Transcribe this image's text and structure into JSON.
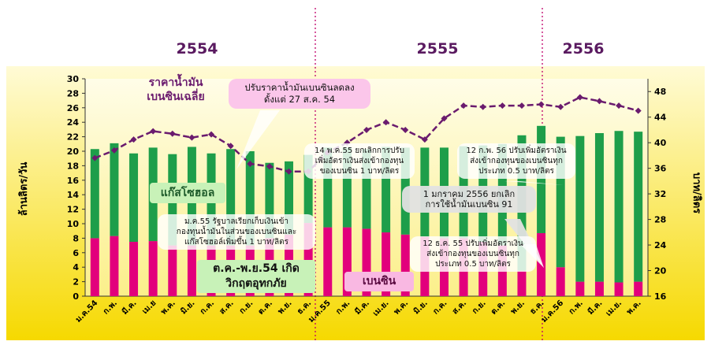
{
  "chart_data": {
    "type": "bar",
    "stacked": true,
    "year_labels": [
      "2554",
      "2555",
      "2556"
    ],
    "y_label": "ล้านลิตร/วัน",
    "y2_label": "บาท/ลิตร",
    "categories": [
      "ม.ค.54",
      "ก.พ.",
      "มี.ค.",
      "เม.ย",
      "พ.ค.",
      "มิ.ย.",
      "ก.ค.",
      "ส.ค.",
      "ก.ย.",
      "ต.ค.",
      "พ.ย.",
      "ธ.ค.",
      "ม.ค.55",
      "ก.พ.",
      "มี.ค.",
      "เม.ย.",
      "พ.ค.",
      "มิ.ย.",
      "ก.ค.",
      "ส.ค.",
      "ก.ย.",
      "ต.ค.",
      "พ.ย.",
      "ธ.ค.",
      "ม.ค.56",
      "ก.พ.",
      "มี.ค.",
      "เม.ย.",
      "พ.ค."
    ],
    "series": [
      {
        "name": "เบนซิน",
        "color": "#e2007c",
        "values": [
          8.0,
          8.3,
          7.5,
          7.6,
          7.0,
          7.0,
          7.0,
          7.0,
          7.0,
          8.0,
          8.5,
          10.1,
          9.5,
          9.5,
          9.3,
          8.8,
          8.5,
          8.2,
          8.0,
          8.0,
          7.5,
          7.0,
          3.5,
          8.7,
          4.0,
          2.0,
          2.0,
          1.9,
          2.0
        ]
      },
      {
        "name": "แก๊สโซฮอล",
        "color": "#1e9e4a",
        "values": [
          12.3,
          12.8,
          12.2,
          12.9,
          12.6,
          13.6,
          12.7,
          13.3,
          13.0,
          10.4,
          10.1,
          9.4,
          11.0,
          11.0,
          11.0,
          11.8,
          12.0,
          12.3,
          12.5,
          12.7,
          13.3,
          14.0,
          18.7,
          14.8,
          18.0,
          20.1,
          20.5,
          20.9,
          20.7
        ]
      },
      {
        "name": "ราคาน้ำมัน\nเบนซินเฉลี่ย",
        "color": "#6a1b6e",
        "type": "line",
        "axis": "y2",
        "values": [
          37.6,
          38.8,
          40.5,
          41.8,
          41.4,
          40.8,
          41.3,
          39.5,
          36.7,
          36.3,
          35.5,
          35.5,
          38.5,
          40.0,
          42.0,
          43.2,
          42.0,
          40.5,
          43.8,
          45.8,
          45.6,
          45.8,
          45.8,
          46.0,
          45.6,
          47.1,
          46.5,
          45.8,
          45.0
        ]
      }
    ],
    "ylim": [
      0,
      30
    ],
    "yticks": [
      0,
      2,
      4,
      6,
      8,
      10,
      12,
      14,
      16,
      18,
      20,
      22,
      24,
      26,
      28,
      30
    ],
    "y2lim": [
      16,
      50
    ],
    "y2ticks": [
      16,
      20,
      24,
      28,
      32,
      36,
      40,
      44,
      48
    ],
    "annotations": [
      "ปรับราคาน้ำมันเบนซินลดลง\nดั้งแต่ 27 ส.ค. 54",
      "ม.ค.55 รัฐบาลเรียกเก็บเงินเข้า\nกองทุนน้ำมันในส่วนของเบนซินและ\nแก๊สโซฮอล์เพิ่มขึ้น 1 บาท/ลิตร",
      "ต.ค.-พ.ย.54 เกิด\nวิกฤตอุทกภัย",
      "14 พ.ค.55 ยกเลิกการปรับ\nเพิ่มอัตราเงินส่งเข้ากองทุน\nของเบนซิน 1 บาท/ลิตร",
      "12 ก.พ. 56 ปรับเพิ่มอัตราเงิน\nส่งเข้ากองทุนของเบนซินทุก\nประเภท  0.5 บาท/ลิตร",
      "1 มกราคม 2556 ยกเลิก\nการใช้น้ำมันเบนซิน 91",
      "12 ธ.ค. 55 ปรับเพิ่มอัตราเงิน\nส่งเข้ากองทุนของเบนซินทุก\nประเภท  0.5 บาท/ลิตร"
    ]
  }
}
